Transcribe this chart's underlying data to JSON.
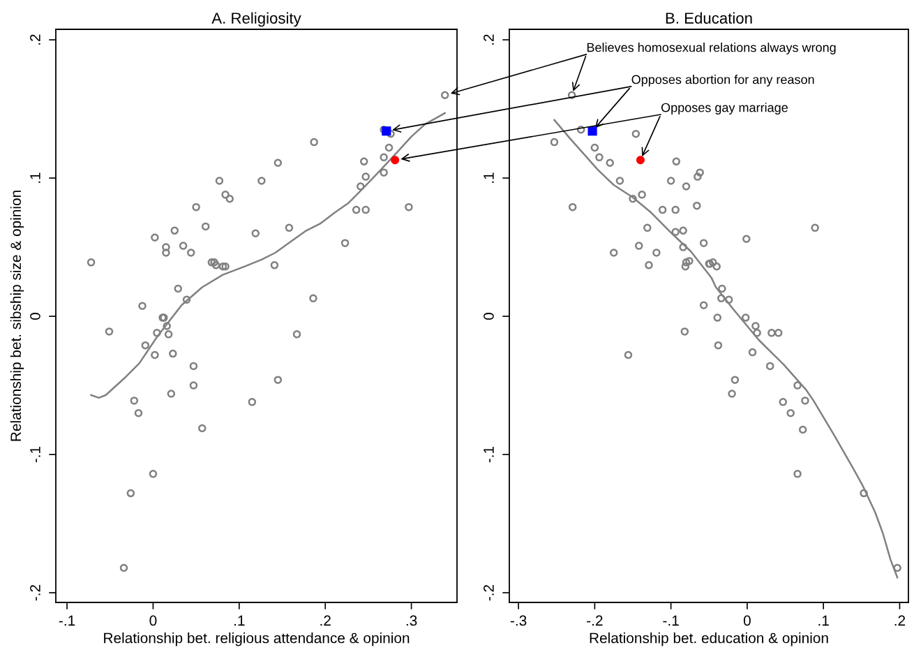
{
  "chart_data": [
    {
      "type": "scatter",
      "title": "A. Religiosity",
      "xlabel": "Relationship bet. religious attendance & opinion",
      "ylabel": "Relationship bet. sibship size & opinion",
      "xlim": [
        -0.113,
        0.353
      ],
      "ylim": [
        -0.207,
        0.2076
      ],
      "xticks": [
        {
          "value": -0.1,
          "label": "-.1"
        },
        0,
        {
          "value": 0.1,
          "label": ".1"
        },
        {
          "value": 0.2,
          "label": ".2"
        },
        {
          "value": 0.3,
          "label": ".3"
        }
      ],
      "yticks": [
        {
          "value": -0.2,
          "label": "-.2"
        },
        {
          "value": -0.1,
          "label": "-.1"
        },
        0,
        {
          "value": 0.1,
          "label": ".1"
        },
        {
          "value": 0.2,
          "label": ".2"
        }
      ],
      "series": [
        {
          "marker": "circle",
          "color": "#808080",
          "x": [
            0.339,
            -0.072,
            -0.051,
            -0.0125,
            -0.009,
            0.002,
            0.002,
            0.0045,
            0.011,
            0.0125,
            0.015,
            0.015,
            0.016,
            0.018,
            0.023,
            0.021,
            0.025,
            0.029,
            0.035,
            0.039,
            0.044,
            0.047,
            0.047,
            0.05,
            0.057,
            0.061,
            0.068,
            0.071,
            0.073,
            0.077,
            0.081,
            0.084,
            0.084,
            0.089,
            0.119,
            0.115,
            0.126,
            0.141,
            0.145,
            0.145,
            0.158,
            0.167,
            0.186,
            0.187,
            0.223,
            0.236,
            0.241,
            0.245,
            0.247,
            0.247,
            0.268,
            0.276,
            0.274,
            0.268,
            0.268,
            0.297,
            0.0,
            -0.026,
            -0.017,
            -0.022,
            -0.034
          ],
          "values": [
            0.16,
            0.039,
            -0.011,
            0.0075,
            -0.021,
            0.057,
            -0.028,
            -0.012,
            -0.001,
            -0.001,
            0.05,
            0.046,
            -0.007,
            -0.013,
            -0.027,
            -0.056,
            0.062,
            0.02,
            0.051,
            0.012,
            0.046,
            -0.036,
            -0.05,
            0.079,
            -0.081,
            0.065,
            0.039,
            0.039,
            0.037,
            0.098,
            0.036,
            0.036,
            0.088,
            0.085,
            0.06,
            -0.062,
            0.098,
            0.037,
            0.111,
            -0.046,
            0.064,
            -0.013,
            0.013,
            0.126,
            0.053,
            0.077,
            0.094,
            0.112,
            0.101,
            0.077,
            0.135,
            0.132,
            0.122,
            0.115,
            0.104,
            0.079,
            -0.114,
            -0.128,
            -0.07,
            -0.061,
            -0.182
          ]
        },
        {
          "marker": "square",
          "color": "#0000ff",
          "x": [
            0.271
          ],
          "values": [
            0.134
          ]
        },
        {
          "marker": "circle",
          "color": "#ff0000",
          "x": [
            0.281
          ],
          "values": [
            0.113
          ]
        },
        {
          "type": "line",
          "color": "#808080",
          "x": [
            -0.072,
            -0.063,
            -0.055,
            -0.032,
            -0.016,
            0.0045,
            0.033,
            0.057,
            0.081,
            0.106,
            0.126,
            0.142,
            0.162,
            0.178,
            0.194,
            0.211,
            0.227,
            0.243,
            0.263,
            0.284,
            0.3,
            0.316,
            0.339
          ],
          "values": [
            -0.057,
            -0.059,
            -0.057,
            -0.044,
            -0.034,
            -0.015,
            0.008,
            0.021,
            0.03,
            0.036,
            0.041,
            0.046,
            0.055,
            0.062,
            0.067,
            0.075,
            0.082,
            0.092,
            0.105,
            0.119,
            0.13,
            0.139,
            0.147
          ]
        }
      ]
    },
    {
      "type": "scatter",
      "title": "B. Education",
      "xlabel": "Relationship bet. education & opinion",
      "xlim": [
        -0.312,
        0.2115
      ],
      "ylim": [
        -0.207,
        0.2076
      ],
      "xticks": [
        {
          "value": -0.3,
          "label": "-.3"
        },
        {
          "value": -0.2,
          "label": "-.2"
        },
        {
          "value": -0.1,
          "label": "-.1"
        },
        0,
        {
          "value": 0.1,
          "label": ".1"
        },
        {
          "value": 0.2,
          "label": ".2"
        }
      ],
      "yticks": [
        {
          "value": -0.2,
          "label": "-.2"
        },
        {
          "value": -0.1,
          "label": "-.1"
        },
        0,
        {
          "value": 0.1,
          "label": ".1"
        },
        {
          "value": 0.2,
          "label": ".2"
        }
      ],
      "annotations": [
        {
          "text": "Believes homosexual relations always wrong",
          "x": -0.23,
          "y": 0.16
        },
        {
          "text": "Opposes abortion for any reason",
          "x": -0.203,
          "y": 0.134
        },
        {
          "text": "Opposes gay marriage",
          "x": -0.14,
          "y": 0.113
        }
      ],
      "series": [
        {
          "marker": "circle",
          "color": "#808080",
          "x": [
            -0.23,
            -0.253,
            -0.218,
            -0.146,
            -0.2,
            -0.194,
            -0.18,
            -0.167,
            -0.229,
            -0.15,
            -0.138,
            -0.1,
            -0.093,
            -0.08,
            -0.065,
            -0.062,
            -0.111,
            -0.094,
            -0.066,
            -0.131,
            -0.094,
            -0.084,
            -0.057,
            -0.084,
            -0.142,
            -0.119,
            -0.175,
            -0.129,
            -0.08,
            -0.076,
            -0.081,
            -0.05,
            -0.057,
            -0.082,
            -0.156,
            -0.001,
            0.089,
            -0.049,
            -0.045,
            -0.04,
            -0.033,
            -0.034,
            -0.024,
            -0.039,
            -0.002,
            0.011,
            0.013,
            0.032,
            0.041,
            -0.038,
            0.007,
            0.03,
            -0.016,
            -0.02,
            0.066,
            0.047,
            0.076,
            0.057,
            0.073,
            0.066,
            0.153,
            0.197
          ],
          "values": [
            0.16,
            0.126,
            0.135,
            0.132,
            0.122,
            0.115,
            0.111,
            0.098,
            0.079,
            0.085,
            0.088,
            0.098,
            0.112,
            0.094,
            0.101,
            0.104,
            0.077,
            0.077,
            0.08,
            0.064,
            0.061,
            0.062,
            0.053,
            0.05,
            0.051,
            0.046,
            0.046,
            0.037,
            0.039,
            0.04,
            0.036,
            0.038,
            0.008,
            -0.011,
            -0.028,
            0.056,
            0.064,
            0.038,
            0.039,
            0.036,
            0.02,
            0.013,
            0.012,
            -0.001,
            -0.001,
            -0.007,
            -0.012,
            -0.012,
            -0.012,
            -0.021,
            -0.026,
            -0.036,
            -0.046,
            -0.056,
            -0.05,
            -0.062,
            -0.061,
            -0.07,
            -0.082,
            -0.114,
            -0.128,
            -0.182
          ]
        },
        {
          "marker": "square",
          "color": "#0000ff",
          "x": [
            -0.203
          ],
          "values": [
            0.134
          ]
        },
        {
          "marker": "circle",
          "color": "#ff0000",
          "x": [
            -0.14
          ],
          "values": [
            0.113
          ]
        },
        {
          "type": "line",
          "color": "#808080",
          "x": [
            -0.253,
            -0.233,
            -0.212,
            -0.196,
            -0.175,
            -0.15,
            -0.126,
            -0.099,
            -0.074,
            -0.047,
            -0.041,
            -0.018,
            0.015,
            0.048,
            0.077,
            0.087,
            0.113,
            0.139,
            0.152,
            0.168,
            0.178,
            0.188,
            0.197
          ],
          "values": [
            0.142,
            0.129,
            0.116,
            0.106,
            0.095,
            0.086,
            0.075,
            0.06,
            0.047,
            0.028,
            0.021,
            0.005,
            -0.017,
            -0.035,
            -0.053,
            -0.061,
            -0.085,
            -0.11,
            -0.123,
            -0.142,
            -0.157,
            -0.176,
            -0.189
          ]
        }
      ]
    }
  ]
}
